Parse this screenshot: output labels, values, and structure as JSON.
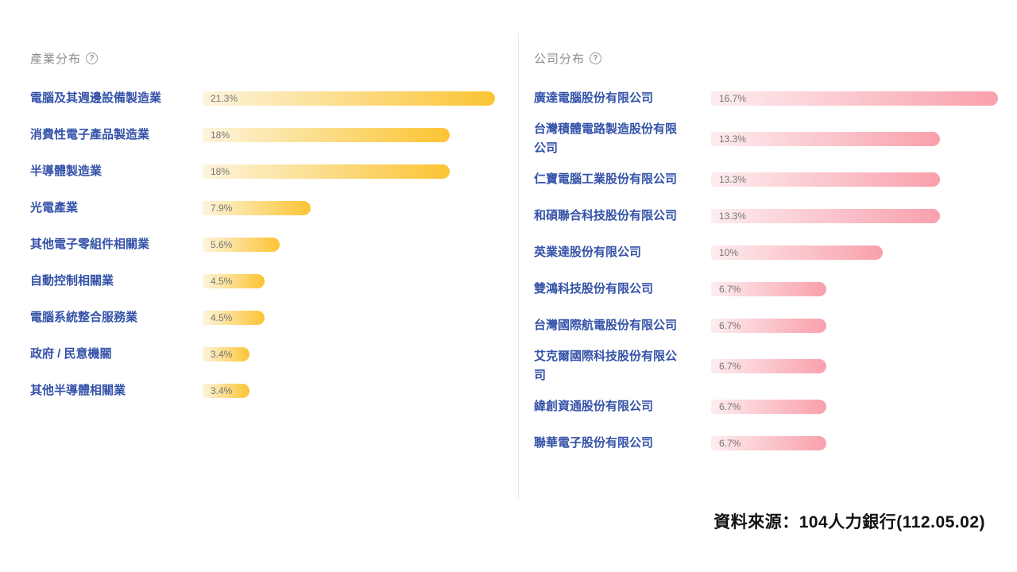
{
  "icons": {
    "help": "?"
  },
  "colors": {
    "label_blue": "#3452A8",
    "title_gray": "#8F8F8F",
    "percent_gray": "#757575",
    "divider_gray": "#E9E9E9",
    "industry_gradient_start": "#FDF4DC",
    "industry_gradient_end": "#FBC433",
    "company_gradient_start": "#FDEDEF",
    "company_gradient_end": "#F9A0AC"
  },
  "source_note": "資料來源：104人力銀行(112.05.02)",
  "chart_data": [
    {
      "type": "bar",
      "orientation": "horizontal",
      "title": "產業分布",
      "legend_position": "none",
      "grid": false,
      "xlim": [
        0,
        21.3
      ],
      "categories": [
        "電腦及其週邊設備製造業",
        "消費性電子產品製造業",
        "半導體製造業",
        "光電產業",
        "其他電子零組件相關業",
        "自動控制相關業",
        "電腦系統整合服務業",
        "政府 / 民意機關",
        "其他半導體相關業"
      ],
      "values": [
        21.3,
        18,
        18,
        7.9,
        5.6,
        4.5,
        4.5,
        3.4,
        3.4
      ],
      "value_labels": [
        "21.3%",
        "18%",
        "18%",
        "7.9%",
        "5.6%",
        "4.5%",
        "4.5%",
        "3.4%",
        "3.4%"
      ],
      "bar_gradient": [
        "#FDF4DC",
        "#FBC433"
      ]
    },
    {
      "type": "bar",
      "orientation": "horizontal",
      "title": "公司分布",
      "legend_position": "none",
      "grid": false,
      "xlim": [
        0,
        16.7
      ],
      "categories": [
        "廣達電腦股份有限公司",
        "台灣積體電路製造股份有限公司",
        "仁寶電腦工業股份有限公司",
        "和碩聯合科技股份有限公司",
        "英業達股份有限公司",
        "雙鴻科技股份有限公司",
        "台灣國際航電股份有限公司",
        "艾克爾國際科技股份有限公司",
        "緯創資通股份有限公司",
        "聯華電子股份有限公司"
      ],
      "values": [
        16.7,
        13.3,
        13.3,
        13.3,
        10,
        6.7,
        6.7,
        6.7,
        6.7,
        6.7
      ],
      "value_labels": [
        "16.7%",
        "13.3%",
        "13.3%",
        "13.3%",
        "10%",
        "6.7%",
        "6.7%",
        "6.7%",
        "6.7%",
        "6.7%"
      ],
      "bar_gradient": [
        "#FDEDEF",
        "#F9A0AC"
      ]
    }
  ]
}
